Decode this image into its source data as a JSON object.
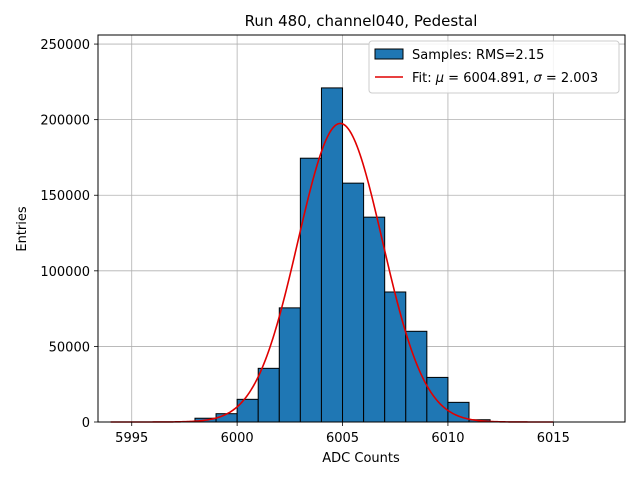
{
  "chart_data": {
    "type": "bar",
    "title": "Run 480, channel040, Pedestal",
    "xlabel": "ADC Counts",
    "ylabel": "Entries",
    "xlim": [
      5993.4,
      6018.4
    ],
    "ylim": [
      0,
      256000
    ],
    "xticks": [
      5995,
      6000,
      6005,
      6010,
      6015
    ],
    "yticks": [
      0,
      50000,
      100000,
      150000,
      200000,
      250000
    ],
    "grid": true,
    "legend_position": "top-right",
    "colors": {
      "bar": "#1f77b4",
      "fit": "#e00000",
      "edge": "#000000"
    },
    "histogram": {
      "name": "Samples: RMS=2.15",
      "bin_edges": [
        5997,
        5998,
        5999,
        6000,
        6001,
        6002,
        6003,
        6004,
        6005,
        6006,
        6007,
        6008,
        6009,
        6010,
        6011,
        6012
      ],
      "counts": [
        0,
        2500,
        5500,
        15000,
        35500,
        75500,
        174500,
        221000,
        158000,
        135500,
        86000,
        60000,
        29500,
        13000,
        1500
      ]
    },
    "fit": {
      "name": "Fit: μ = 6004.891, σ = 2.003",
      "name_parts": [
        "Fit: ",
        "μ",
        " = 6004.891, ",
        "σ",
        " = 2.003"
      ],
      "mu": 6004.891,
      "sigma": 2.003,
      "amplitude": 197500,
      "x_range": [
        5994,
        6015
      ]
    }
  }
}
